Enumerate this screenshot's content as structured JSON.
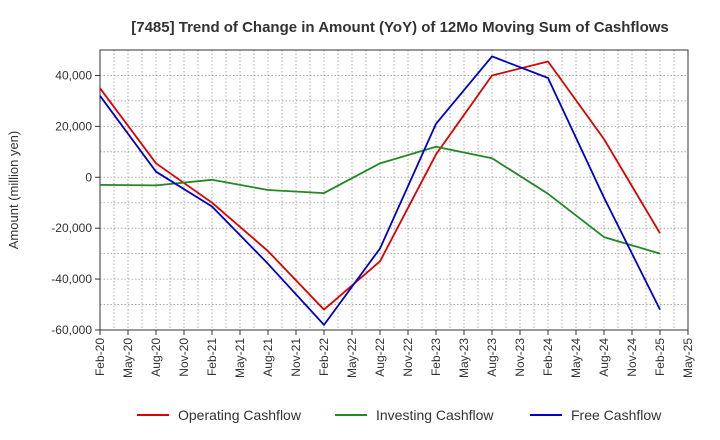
{
  "chart_data": {
    "type": "line",
    "title": "[7485]  Trend of Change in Amount (YoY) of 12Mo Moving Sum of Cashflows",
    "xlabel": "",
    "ylabel": "Amount (million yen)",
    "ylim": [
      -60000,
      50000
    ],
    "yticks": [
      -60000,
      -40000,
      -20000,
      0,
      20000,
      40000
    ],
    "ytick_labels": [
      "-60,000",
      "-40,000",
      "-20,000",
      "0",
      "20,000",
      "40,000"
    ],
    "grid": true,
    "legend_position": "bottom",
    "categories": [
      "Feb-20",
      "May-20",
      "Aug-20",
      "Nov-20",
      "Feb-21",
      "May-21",
      "Aug-21",
      "Nov-21",
      "Feb-22",
      "May-22",
      "Aug-22",
      "Nov-22",
      "Feb-23",
      "May-23",
      "Aug-23",
      "Nov-23",
      "Feb-24",
      "May-24",
      "Aug-24",
      "Nov-24",
      "Feb-25",
      "May-25"
    ],
    "series": [
      {
        "name": "Operating Cashflow",
        "color": "#dd0000",
        "values": [
          35000,
          null,
          5500,
          null,
          -10000,
          null,
          -29000,
          null,
          -52000,
          null,
          -33000,
          null,
          9000,
          null,
          40000,
          null,
          45500,
          null,
          15000,
          null,
          -22000,
          null
        ]
      },
      {
        "name": "Investing Cashflow",
        "color": "#228822",
        "values": [
          -3000,
          null,
          -3200,
          null,
          -1000,
          null,
          -5000,
          null,
          -6200,
          null,
          5500,
          null,
          12000,
          null,
          7500,
          null,
          -6500,
          null,
          -23500,
          null,
          -30000,
          null
        ]
      },
      {
        "name": "Free Cashflow",
        "color": "#0000cc",
        "values": [
          32000,
          null,
          2200,
          null,
          -11500,
          null,
          -34000,
          null,
          -58000,
          null,
          -28000,
          null,
          21000,
          null,
          47500,
          null,
          39000,
          null,
          -8000,
          null,
          -52000,
          null
        ]
      }
    ]
  }
}
